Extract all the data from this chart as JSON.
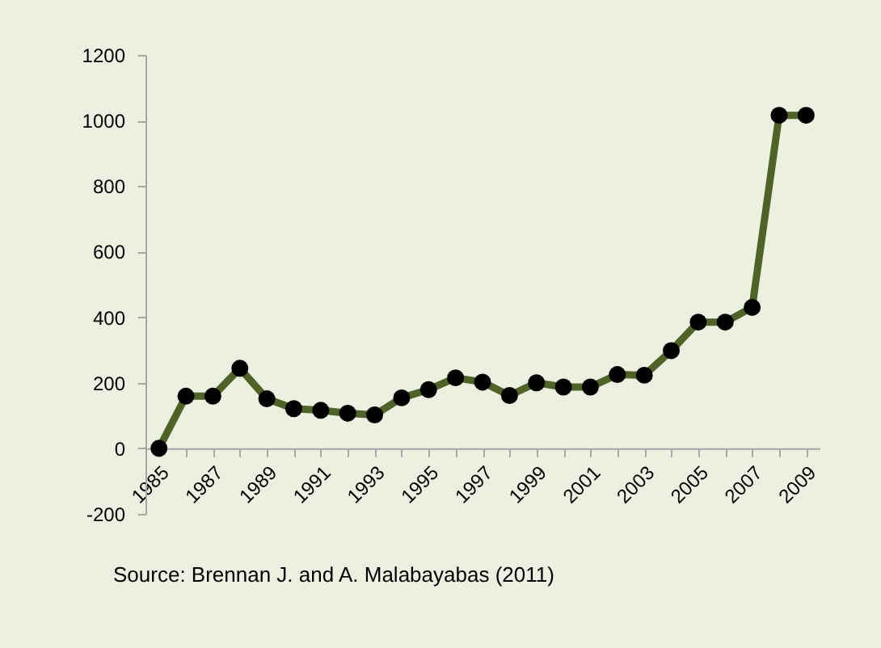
{
  "chart_data": {
    "type": "line",
    "categories": [
      "1985",
      null,
      "1987",
      null,
      "1989",
      null,
      "1991",
      null,
      "1993",
      null,
      "1995",
      null,
      "1997",
      null,
      "1999",
      null,
      "2001",
      null,
      "2003",
      null,
      "2005",
      null,
      "2007",
      null,
      "2009"
    ],
    "series": [
      {
        "color": "#4f6228",
        "values": [
          0,
          159,
          159,
          244,
          151,
          121,
          116,
          107,
          102,
          154,
          179,
          215,
          202,
          161,
          200,
          187,
          187,
          225,
          223,
          298,
          385,
          385,
          430,
          1016,
          1016
        ]
      }
    ],
    "ylim": [
      -200,
      1200
    ],
    "yticks": [
      -200,
      0,
      200,
      400,
      600,
      800,
      1000,
      1200
    ],
    "grid": false,
    "marker": "circle",
    "line_style": "solid",
    "annotations": [
      "Source: Brennan J. and A. Malabayabas (2011)"
    ]
  }
}
